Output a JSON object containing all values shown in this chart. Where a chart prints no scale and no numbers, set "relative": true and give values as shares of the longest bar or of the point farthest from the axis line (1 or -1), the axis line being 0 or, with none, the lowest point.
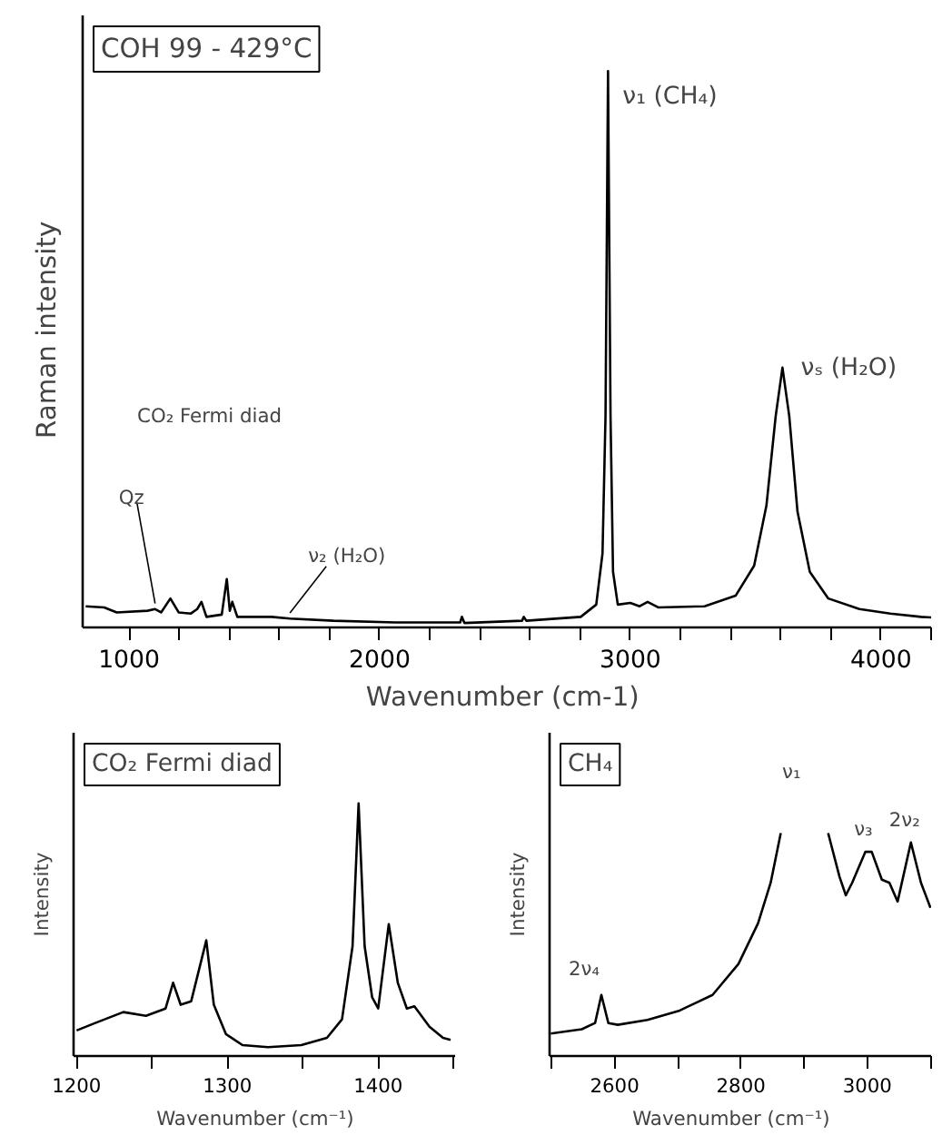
{
  "chart_data": [
    {
      "type": "line",
      "title": "COH 99 - 429°C",
      "xlabel": "Wavenumber  (cm-1)",
      "ylabel": "Raman   intensity",
      "relative": true,
      "grid": false,
      "xlim": [
        815,
        4200
      ],
      "xticks": [
        {
          "value": 1000,
          "label": "1000"
        },
        {
          "value": 1200,
          "label": null
        },
        {
          "value": 1400,
          "label": null
        },
        {
          "value": 1600,
          "label": null
        },
        {
          "value": 1800,
          "label": null
        },
        {
          "value": 2000,
          "label": "2000"
        },
        {
          "value": 2200,
          "label": null
        },
        {
          "value": 2400,
          "label": null
        },
        {
          "value": 2600,
          "label": null
        },
        {
          "value": 2800,
          "label": null
        },
        {
          "value": 3000,
          "label": "3000"
        },
        {
          "value": 3200,
          "label": null
        },
        {
          "value": 3400,
          "label": null
        },
        {
          "value": 3600,
          "label": null
        },
        {
          "value": 3800,
          "label": null
        },
        {
          "value": 4000,
          "label": "4000"
        },
        {
          "value": 4200,
          "label": null
        }
      ],
      "x": [
        827,
        901,
        951,
        1074,
        1104,
        1128,
        1165,
        1198,
        1247,
        1272,
        1289,
        1309,
        1370,
        1390,
        1402,
        1412,
        1432,
        1568,
        1642,
        1815,
        2062,
        2321,
        2328,
        2338,
        2568,
        2575,
        2585,
        2802,
        2864,
        2889,
        2901,
        2911,
        2921,
        2931,
        2950,
        3000,
        3037,
        3069,
        3111,
        3296,
        3420,
        3494,
        3543,
        3580,
        3607,
        3634,
        3667,
        3716,
        3790,
        3914,
        4037,
        4160,
        4200
      ],
      "series": [
        {
          "color": "#000000",
          "values": [
            0.038,
            0.036,
            0.027,
            0.03,
            0.033,
            0.027,
            0.052,
            0.027,
            0.025,
            0.033,
            0.046,
            0.019,
            0.023,
            0.087,
            0.03,
            0.046,
            0.019,
            0.019,
            0.016,
            0.012,
            0.009,
            0.009,
            0.019,
            0.008,
            0.012,
            0.019,
            0.012,
            0.019,
            0.041,
            0.133,
            0.38,
            1.0,
            0.38,
            0.1,
            0.041,
            0.044,
            0.038,
            0.046,
            0.036,
            0.038,
            0.057,
            0.111,
            0.219,
            0.38,
            0.467,
            0.38,
            0.208,
            0.1,
            0.052,
            0.033,
            0.025,
            0.019,
            0.018
          ]
        }
      ],
      "annotations": [
        {
          "text": "ν₁ (CH₄)",
          "x": 2911,
          "y": 1.0
        },
        {
          "text": "νₛ (H₂O)",
          "x": 3607,
          "y": 0.467
        },
        {
          "text": "ν₂ (H₂O)",
          "x": 1642,
          "y": 0.016
        },
        {
          "text": "Qz",
          "x": 1104,
          "y": 0.033
        },
        "CO₂ Fermi diad"
      ]
    },
    {
      "type": "line",
      "title": "CO₂ Fermi diad",
      "xlabel": "Wavenumber    (cm⁻¹)",
      "ylabel": "Intensity",
      "relative": true,
      "grid": false,
      "xlim": [
        1198,
        1451
      ],
      "xticks": [
        {
          "value": 1200,
          "label": "1200"
        },
        {
          "value": 1250,
          "label": null
        },
        {
          "value": 1300,
          "label": "1300"
        },
        {
          "value": 1350,
          "label": null
        },
        {
          "value": 1400,
          "label": "1400"
        },
        {
          "value": 1450,
          "label": null
        }
      ],
      "x": [
        1200,
        1212,
        1231,
        1246,
        1259,
        1264,
        1269,
        1276,
        1286,
        1291,
        1299,
        1310,
        1327,
        1349,
        1366,
        1376,
        1383,
        1387,
        1391,
        1396,
        1400,
        1407,
        1413,
        1419,
        1424,
        1434,
        1443,
        1448
      ],
      "series": [
        {
          "color": "#000000",
          "values": [
            0.101,
            0.13,
            0.174,
            0.159,
            0.188,
            0.29,
            0.203,
            0.217,
            0.458,
            0.203,
            0.087,
            0.043,
            0.035,
            0.043,
            0.072,
            0.145,
            0.435,
            1.0,
            0.435,
            0.232,
            0.188,
            0.522,
            0.29,
            0.188,
            0.197,
            0.116,
            0.072,
            0.064
          ]
        }
      ]
    },
    {
      "type": "line",
      "title": "CH₄",
      "xlabel": "Wavenumber    (cm⁻¹)",
      "ylabel": "Intensity",
      "relative": true,
      "grid": false,
      "xlim": [
        2497,
        3101
      ],
      "xticks": [
        {
          "value": 2500,
          "label": null
        },
        {
          "value": 2600,
          "label": "2600"
        },
        {
          "value": 2700,
          "label": null
        },
        {
          "value": 2800,
          "label": "2800"
        },
        {
          "value": 2900,
          "label": null
        },
        {
          "value": 3000,
          "label": "3000"
        },
        {
          "value": 3100,
          "label": null
        }
      ],
      "x": [
        2499,
        2548,
        2569,
        2579,
        2590,
        2605,
        2652,
        2703,
        2755,
        2796,
        2827,
        2847,
        2863,
        2900,
        2938,
        2956,
        2966,
        2976,
        2997,
        3007,
        3023,
        3035,
        3048,
        3069,
        3085,
        3100
      ],
      "series": [
        {
          "color": "#000000",
          "values": [
            0.101,
            0.12,
            0.148,
            0.274,
            0.148,
            0.14,
            0.162,
            0.204,
            0.274,
            0.413,
            0.595,
            0.777,
            1.0,
            null,
            1.0,
            0.804,
            0.721,
            0.777,
            0.916,
            0.916,
            0.791,
            0.777,
            0.693,
            0.958,
            0.777,
            0.665
          ]
        }
      ],
      "annotations": [
        {
          "text": "2ν₄",
          "x": 2579,
          "y": 0.274
        },
        "ν₁",
        {
          "text": "ν₃",
          "x": 3002,
          "y": 0.916
        },
        {
          "text": "2ν₂",
          "x": 3069,
          "y": 0.958
        }
      ]
    }
  ]
}
